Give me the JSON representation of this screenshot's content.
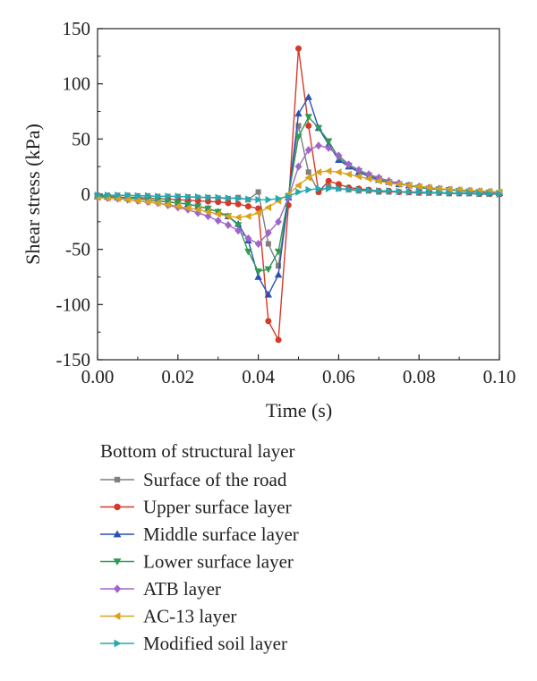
{
  "chart_data": {
    "type": "line",
    "xlabel": "Time (s)",
    "ylabel": "Shear stress (kPa)",
    "xlim": [
      0.0,
      0.1
    ],
    "ylim": [
      -150,
      150
    ],
    "x_ticks": [
      "0.00",
      "0.02",
      "0.04",
      "0.06",
      "0.08",
      "0.10"
    ],
    "y_ticks": [
      "150",
      "100",
      "50",
      "0",
      "-50",
      "-100",
      "-150"
    ],
    "grid": false,
    "legend_title": "Bottom of structural layer",
    "legend_position": "below",
    "series": [
      {
        "name": "Surface of the road",
        "color": "#7f7f7f",
        "marker": "square",
        "x": [
          0,
          0.0025,
          0.005,
          0.0075,
          0.01,
          0.0125,
          0.015,
          0.0175,
          0.02,
          0.0225,
          0.025,
          0.0275,
          0.03,
          0.0325,
          0.035,
          0.0375,
          0.04,
          0.0425,
          0.045,
          0.0475,
          0.05,
          0.0525,
          0.055,
          0.0575,
          0.06,
          0.0625,
          0.065,
          0.0675,
          0.07,
          0.0725,
          0.075,
          0.0775,
          0.08,
          0.0825,
          0.085,
          0.0875,
          0.09,
          0.0925,
          0.095,
          0.0975,
          0.1
        ],
        "y": [
          -1,
          -1,
          -1,
          -1,
          -1.5,
          -1.5,
          -2,
          -2,
          -2,
          -2.5,
          -3,
          -3,
          -3.5,
          -4,
          -3,
          -5,
          2,
          -45,
          -65,
          -2,
          62,
          20,
          2,
          7,
          5,
          4,
          3,
          3,
          2,
          2,
          2,
          1.5,
          1,
          1,
          1,
          0.5,
          0.5,
          0.5,
          0,
          0,
          0
        ]
      },
      {
        "name": "Upper surface layer",
        "color": "#d43a2a",
        "marker": "circle",
        "x": [
          0,
          0.0025,
          0.005,
          0.0075,
          0.01,
          0.0125,
          0.015,
          0.0175,
          0.02,
          0.0225,
          0.025,
          0.0275,
          0.03,
          0.0325,
          0.035,
          0.0375,
          0.04,
          0.0425,
          0.045,
          0.0475,
          0.05,
          0.0525,
          0.055,
          0.0575,
          0.06,
          0.0625,
          0.065,
          0.0675,
          0.07,
          0.0725,
          0.075,
          0.0775,
          0.08,
          0.0825,
          0.085,
          0.0875,
          0.09,
          0.0925,
          0.095,
          0.0975,
          0.1
        ],
        "y": [
          -2,
          -2,
          -2.5,
          -3,
          -3,
          -3.5,
          -4,
          -4.5,
          -5,
          -5.5,
          -6,
          -6.5,
          -7,
          -8,
          -9,
          -11,
          -13,
          -115,
          -132,
          -10,
          132,
          62,
          2,
          12,
          9,
          6,
          5,
          4,
          3,
          3,
          2,
          2,
          2,
          1.5,
          1.5,
          1,
          1,
          1,
          0.5,
          0.5,
          0
        ]
      },
      {
        "name": "Middle surface layer",
        "color": "#2c4fb5",
        "marker": "triangle-up",
        "x": [
          0,
          0.0025,
          0.005,
          0.0075,
          0.01,
          0.0125,
          0.015,
          0.0175,
          0.02,
          0.0225,
          0.025,
          0.0275,
          0.03,
          0.0325,
          0.035,
          0.0375,
          0.04,
          0.0425,
          0.045,
          0.0475,
          0.05,
          0.0525,
          0.055,
          0.0575,
          0.06,
          0.0625,
          0.065,
          0.0675,
          0.07,
          0.0725,
          0.075,
          0.0775,
          0.08,
          0.0825,
          0.085,
          0.0875,
          0.09,
          0.0925,
          0.095,
          0.0975,
          0.1
        ],
        "y": [
          -2,
          -2.5,
          -3,
          -3.5,
          -4,
          -5,
          -6,
          -7,
          -8,
          -9,
          -11,
          -13,
          -16,
          -20,
          -27,
          -42,
          -75,
          -91,
          -73,
          -3,
          73,
          88,
          60,
          45,
          31,
          25,
          20,
          16,
          13,
          11,
          9,
          8,
          6,
          5,
          4.5,
          4,
          3,
          2.5,
          2,
          1.5,
          1
        ]
      },
      {
        "name": "Lower surface layer",
        "color": "#2e9a52",
        "marker": "triangle-down",
        "x": [
          0,
          0.0025,
          0.005,
          0.0075,
          0.01,
          0.0125,
          0.015,
          0.0175,
          0.02,
          0.0225,
          0.025,
          0.0275,
          0.03,
          0.0325,
          0.035,
          0.0375,
          0.04,
          0.0425,
          0.045,
          0.0475,
          0.05,
          0.0525,
          0.055,
          0.0575,
          0.06,
          0.0625,
          0.065,
          0.0675,
          0.07,
          0.0725,
          0.075,
          0.0775,
          0.08,
          0.0825,
          0.085,
          0.0875,
          0.09,
          0.0925,
          0.095,
          0.0975,
          0.1
        ],
        "y": [
          -2,
          -2.5,
          -3,
          -3.5,
          -4,
          -5,
          -6,
          -7,
          -8,
          -9,
          -11,
          -13,
          -16,
          -20,
          -28,
          -52,
          -70,
          -68,
          -52,
          -2,
          52,
          70,
          60,
          48,
          33,
          26,
          21,
          17,
          14,
          11,
          9,
          8,
          6,
          5,
          4.5,
          4,
          3,
          2.5,
          2,
          1.5,
          1
        ]
      },
      {
        "name": "ATB layer",
        "color": "#a066c7",
        "marker": "diamond",
        "x": [
          0,
          0.0025,
          0.005,
          0.0075,
          0.01,
          0.0125,
          0.015,
          0.0175,
          0.02,
          0.0225,
          0.025,
          0.0275,
          0.03,
          0.0325,
          0.035,
          0.0375,
          0.04,
          0.0425,
          0.045,
          0.0475,
          0.05,
          0.0525,
          0.055,
          0.0575,
          0.06,
          0.0625,
          0.065,
          0.0675,
          0.07,
          0.0725,
          0.075,
          0.0775,
          0.08,
          0.0825,
          0.085,
          0.0875,
          0.09,
          0.0925,
          0.095,
          0.0975,
          0.1
        ],
        "y": [
          -3,
          -3.5,
          -4,
          -5,
          -6,
          -7,
          -8,
          -10,
          -12,
          -14,
          -17,
          -20,
          -24,
          -28,
          -33,
          -40,
          -45,
          -35,
          -25,
          -3,
          25,
          40,
          44,
          42,
          35,
          27,
          22,
          18,
          15,
          12,
          10,
          8,
          7,
          6,
          5,
          4,
          3.5,
          3,
          2.5,
          2,
          1
        ]
      },
      {
        "name": "AC-13 layer",
        "color": "#d9a21b",
        "marker": "triangle-left",
        "x": [
          0,
          0.0025,
          0.005,
          0.0075,
          0.01,
          0.0125,
          0.015,
          0.0175,
          0.02,
          0.0225,
          0.025,
          0.0275,
          0.03,
          0.0325,
          0.035,
          0.0375,
          0.04,
          0.0425,
          0.045,
          0.0475,
          0.05,
          0.0525,
          0.055,
          0.0575,
          0.06,
          0.0625,
          0.065,
          0.0675,
          0.07,
          0.0725,
          0.075,
          0.0775,
          0.08,
          0.0825,
          0.085,
          0.0875,
          0.09,
          0.0925,
          0.095,
          0.0975,
          0.1
        ],
        "y": [
          -3,
          -3.5,
          -4,
          -5,
          -6,
          -7,
          -8,
          -9.5,
          -11,
          -12.5,
          -14,
          -16,
          -18,
          -20,
          -21,
          -20,
          -17,
          -12,
          -6,
          0,
          8,
          15,
          20,
          21,
          20,
          18,
          16,
          14,
          12,
          10,
          9,
          8,
          7,
          6,
          5,
          4.5,
          4,
          3.5,
          3,
          2.5,
          2
        ]
      },
      {
        "name": "Modified soil layer",
        "color": "#25a8b0",
        "marker": "triangle-right",
        "x": [
          0,
          0.0025,
          0.005,
          0.0075,
          0.01,
          0.0125,
          0.015,
          0.0175,
          0.02,
          0.0225,
          0.025,
          0.0275,
          0.03,
          0.0325,
          0.035,
          0.0375,
          0.04,
          0.0425,
          0.045,
          0.0475,
          0.05,
          0.0525,
          0.055,
          0.0575,
          0.06,
          0.0625,
          0.065,
          0.0675,
          0.07,
          0.0725,
          0.075,
          0.0775,
          0.08,
          0.0825,
          0.085,
          0.0875,
          0.09,
          0.0925,
          0.095,
          0.0975,
          0.1
        ],
        "y": [
          -1,
          -1,
          -1,
          -1,
          -1.5,
          -1.5,
          -2,
          -2,
          -2,
          -2.5,
          -2.5,
          -3,
          -3,
          -3.5,
          -4,
          -4.5,
          -5,
          -5,
          -4,
          -2,
          2,
          4,
          5,
          5,
          5,
          4.5,
          4,
          3.5,
          3,
          3,
          2.5,
          2,
          2,
          1.5,
          1.5,
          1,
          1,
          1,
          0.5,
          0.5,
          0
        ]
      }
    ]
  }
}
